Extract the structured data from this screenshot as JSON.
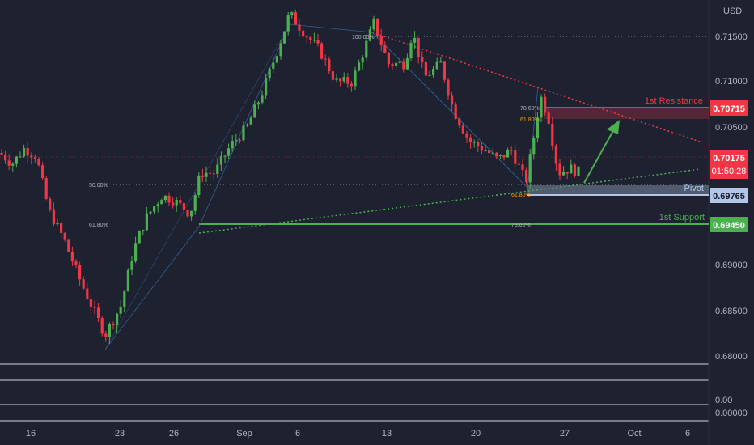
{
  "currency_label": "USD",
  "chart_data": {
    "type": "candlestick",
    "title": "",
    "xlabel": "",
    "ylabel": "USD",
    "ylim": [
      0.678,
      0.718
    ],
    "y_ticks": [
      "0.71500",
      "0.71000",
      "0.70500",
      "0.69000",
      "0.68500",
      "0.68000"
    ],
    "x_ticks": [
      {
        "label": "16",
        "x_index": 0
      },
      {
        "label": "23",
        "x_index": 5
      },
      {
        "label": "26",
        "x_index": 8
      },
      {
        "label": "Sep",
        "x_index": 12
      },
      {
        "label": "6",
        "x_index": 16
      },
      {
        "label": "13",
        "x_index": 21
      },
      {
        "label": "20",
        "x_index": 26
      },
      {
        "label": "27",
        "x_index": 31
      },
      {
        "label": "Oct",
        "x_index": 35
      },
      {
        "label": "6",
        "x_index": 40
      }
    ],
    "current_price": {
      "value": 0.70175,
      "label": "0.70175",
      "countdown": "01:50:28"
    },
    "levels": [
      {
        "name": "1st Resistance",
        "value": 0.70715,
        "label": "0.70715",
        "color": "#f23645"
      },
      {
        "name": "Pivot",
        "value": 0.69765,
        "label": "0.69765",
        "color": "#b2c7e8"
      },
      {
        "name": "1st Support",
        "value": 0.6945,
        "label": "0.69450",
        "color": "#4caf50"
      }
    ],
    "fib_labels": [
      "100.00%",
      "78.60%",
      "61.80%",
      "50.00%",
      "61.80%",
      "61.80%",
      "78.60%"
    ],
    "sub_pane_ticks": [
      "0.00",
      "0.00000"
    ],
    "up_color": "#4caf50",
    "down_color": "#f23645"
  }
}
